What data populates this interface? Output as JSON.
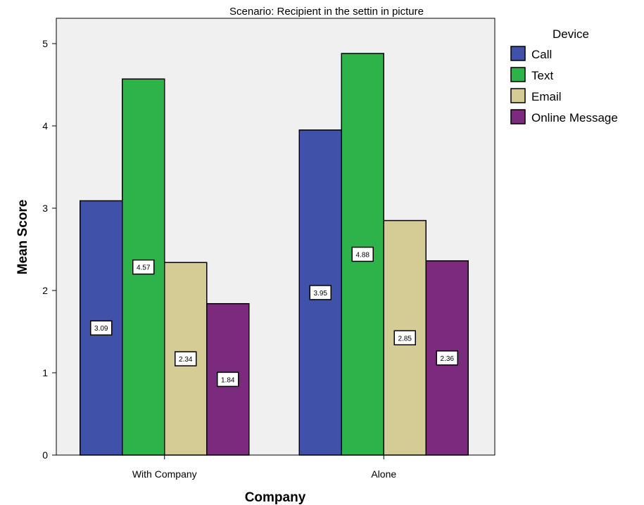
{
  "chart_data": {
    "type": "bar",
    "title": "Scenario: Recipient in the settin in picture",
    "xlabel": "Company",
    "ylabel": "Mean Score",
    "categories": [
      "With Company",
      "Alone"
    ],
    "series": [
      {
        "name": "Call",
        "color": "#3f51a8",
        "values": [
          3.09,
          3.95
        ],
        "labels": [
          "3.09",
          "3.95"
        ]
      },
      {
        "name": "Text",
        "color": "#2db34a",
        "values": [
          4.57,
          4.88
        ],
        "labels": [
          "4.57",
          "4.88"
        ]
      },
      {
        "name": "Email",
        "color": "#d5cc95",
        "values": [
          2.34,
          2.85
        ],
        "labels": [
          "2.34",
          "2.85"
        ]
      },
      {
        "name": "Online Message",
        "color": "#7b2a7d",
        "values": [
          1.84,
          2.36
        ],
        "labels": [
          "1.84",
          "2.36"
        ]
      }
    ],
    "ylim": [
      0,
      5.3
    ],
    "yticks": [
      "0",
      "1",
      "2",
      "3",
      "4",
      "5"
    ],
    "legend_title": "Device",
    "legend_position": "top-right",
    "plot_background": "#f0f0f0",
    "grid": false
  }
}
